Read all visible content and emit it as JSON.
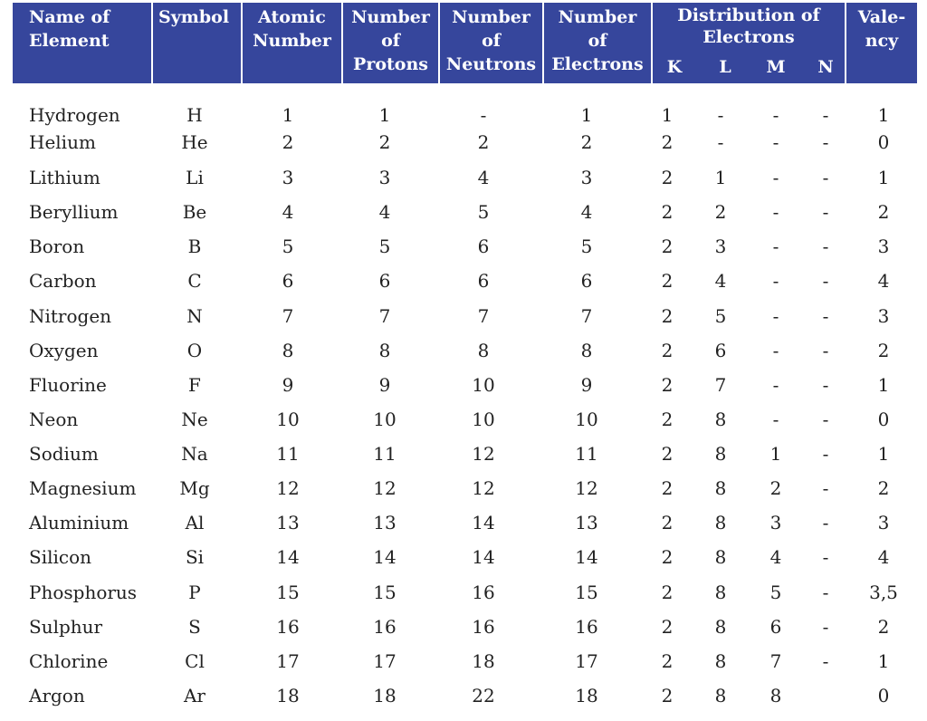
{
  "table": {
    "header": [
      {
        "lines": [
          "Name of",
          "Element"
        ]
      },
      {
        "lines": [
          "Symbol"
        ]
      },
      {
        "lines": [
          "Atomic",
          "Number"
        ]
      },
      {
        "lines": [
          "Number",
          "of",
          "Protons"
        ]
      },
      {
        "lines": [
          "Number",
          "of",
          "Neutrons"
        ]
      },
      {
        "lines": [
          "Number",
          "of",
          "Electrons"
        ]
      },
      {
        "lines": [
          "Distribution of",
          "Electrons"
        ],
        "sub": [
          "K",
          "L",
          "M",
          "N"
        ]
      },
      {
        "lines": [
          "Vale-",
          "ncy"
        ]
      }
    ],
    "rows": [
      [
        "Hydrogen",
        "H",
        1,
        1,
        "-",
        1,
        1,
        "-",
        "-",
        "-",
        1
      ],
      [
        "Helium",
        "He",
        2,
        2,
        2,
        2,
        2,
        "-",
        "-",
        "-",
        0
      ],
      [
        "Lithium",
        "Li",
        3,
        3,
        4,
        3,
        2,
        1,
        "-",
        "-",
        1
      ],
      [
        "Beryllium",
        "Be",
        4,
        4,
        5,
        4,
        2,
        2,
        "-",
        "-",
        2
      ],
      [
        "Boron",
        "B",
        5,
        5,
        6,
        5,
        2,
        3,
        "-",
        "-",
        3
      ],
      [
        "Carbon",
        "C",
        6,
        6,
        6,
        6,
        2,
        4,
        "-",
        "-",
        4
      ],
      [
        "Nitrogen",
        "N",
        7,
        7,
        7,
        7,
        2,
        5,
        "-",
        "-",
        3
      ],
      [
        "Oxygen",
        "O",
        8,
        8,
        8,
        8,
        2,
        6,
        "-",
        "-",
        2
      ],
      [
        "Fluorine",
        "F",
        9,
        9,
        10,
        9,
        2,
        7,
        "-",
        "-",
        1
      ],
      [
        "Neon",
        "Ne",
        10,
        10,
        10,
        10,
        2,
        8,
        "-",
        "-",
        0
      ],
      [
        "Sodium",
        "Na",
        11,
        11,
        12,
        11,
        2,
        8,
        1,
        "-",
        1
      ],
      [
        "Magnesium",
        "Mg",
        12,
        12,
        12,
        12,
        2,
        8,
        2,
        "-",
        2
      ],
      [
        "Aluminium",
        "Al",
        13,
        13,
        14,
        13,
        2,
        8,
        3,
        "-",
        3
      ],
      [
        "Silicon",
        "Si",
        14,
        14,
        14,
        14,
        2,
        8,
        4,
        "-",
        4
      ],
      [
        "Phosphorus",
        "P",
        15,
        15,
        16,
        15,
        2,
        8,
        5,
        "-",
        "3,5"
      ],
      [
        "Sulphur",
        "S",
        16,
        16,
        16,
        16,
        2,
        8,
        6,
        "-",
        2
      ],
      [
        "Chlorine",
        "Cl",
        17,
        17,
        18,
        17,
        2,
        8,
        7,
        "-",
        1
      ],
      [
        "Argon",
        "Ar",
        18,
        18,
        22,
        18,
        2,
        8,
        8,
        "",
        0
      ]
    ]
  }
}
